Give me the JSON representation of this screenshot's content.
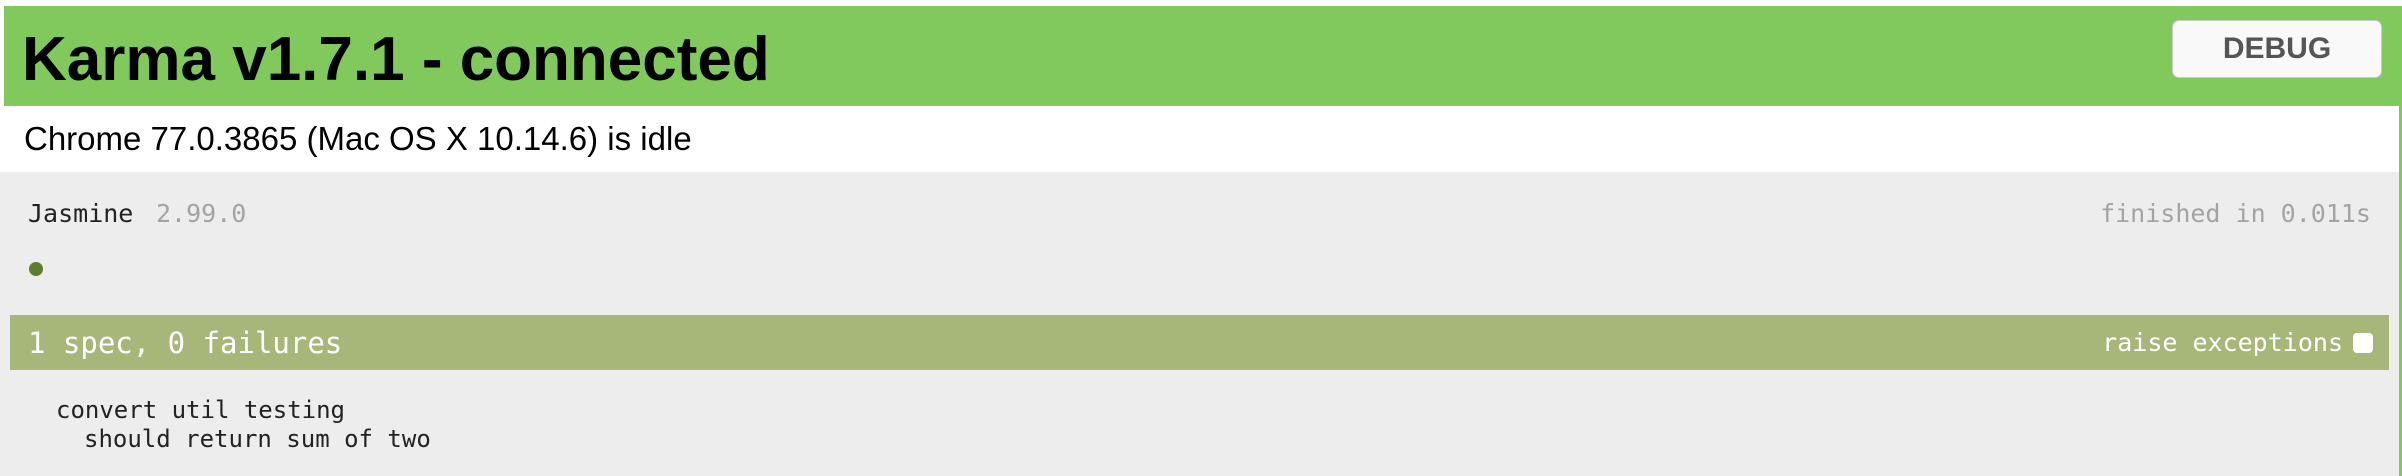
{
  "header": {
    "title": "Karma v1.7.1 - connected",
    "debug_label": "DEBUG",
    "banner_color": "#81c95c"
  },
  "browser": {
    "status": "Chrome 77.0.3865 (Mac OS X 10.14.6) is idle"
  },
  "reporter": {
    "name": "Jasmine",
    "version": "2.99.0",
    "duration": "finished in 0.011s",
    "passed_spec_color": "#5e7d2f",
    "summary": {
      "text": "1 spec, 0 failures",
      "bar_color": "#a6b779",
      "raise_exceptions_label": "raise exceptions",
      "raise_exceptions_checked": false
    },
    "suites": [
      {
        "name": "convert util testing",
        "specs": [
          "should return sum of two"
        ]
      }
    ]
  }
}
